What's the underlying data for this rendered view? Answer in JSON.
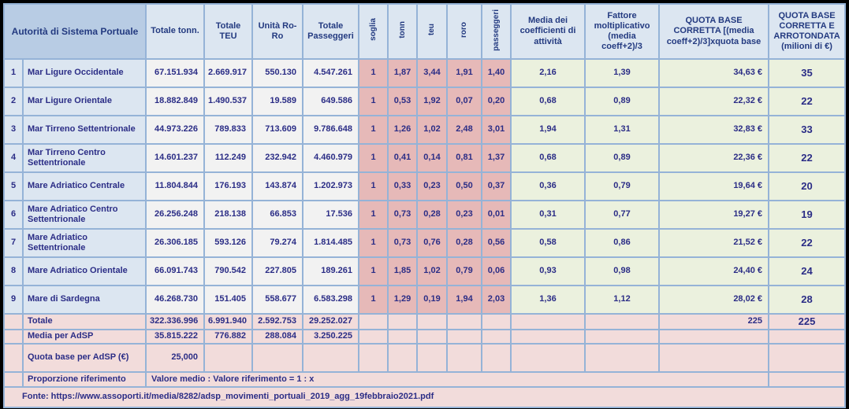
{
  "table": {
    "header": {
      "authority": "Autorità di Sistema Portuale",
      "tonn": "Totale tonn.",
      "teu": "Totale TEU",
      "roro": "Unità Ro-Ro",
      "passengers": "Totale Passeggeri",
      "rot_soglia": "soglia",
      "rot_tonn": "tonn",
      "rot_teu": "teu",
      "rot_roro": "roro",
      "rot_passeggeri": "passeggeri",
      "media": "Media dei coefficienti di attività",
      "fattore": "Fattore moltiplicativo (media coeff+2)/3",
      "quota": "QUOTA BASE CORRETTA [(media coeff+2)/3]xquota base",
      "quota_round": "QUOTA BASE CORRETTA E ARROTONDATA (milioni di €)"
    },
    "rows": [
      {
        "n": "1",
        "name": "Mar Ligure Occidentale",
        "tonn": "67.151.934",
        "teu": "2.669.917",
        "roro": "550.130",
        "pass": "4.547.261",
        "soglia": "1",
        "c_tonn": "1,87",
        "c_teu": "3,44",
        "c_roro": "1,91",
        "c_pass": "1,40",
        "media": "2,16",
        "fattore": "1,39",
        "quota": "34,63 €",
        "quota_round": "35"
      },
      {
        "n": "2",
        "name": "Mar Ligure Orientale",
        "tonn": "18.882.849",
        "teu": "1.490.537",
        "roro": "19.589",
        "pass": "649.586",
        "soglia": "1",
        "c_tonn": "0,53",
        "c_teu": "1,92",
        "c_roro": "0,07",
        "c_pass": "0,20",
        "media": "0,68",
        "fattore": "0,89",
        "quota": "22,32 €",
        "quota_round": "22"
      },
      {
        "n": "3",
        "name": "Mar Tirreno Settentrionale",
        "tonn": "44.973.226",
        "teu": "789.833",
        "roro": "713.609",
        "pass": "9.786.648",
        "soglia": "1",
        "c_tonn": "1,26",
        "c_teu": "1,02",
        "c_roro": "2,48",
        "c_pass": "3,01",
        "media": "1,94",
        "fattore": "1,31",
        "quota": "32,83 €",
        "quota_round": "33"
      },
      {
        "n": "4",
        "name": "Mar Tirreno Centro Settentrionale",
        "tonn": "14.601.237",
        "teu": "112.249",
        "roro": "232.942",
        "pass": "4.460.979",
        "soglia": "1",
        "c_tonn": "0,41",
        "c_teu": "0,14",
        "c_roro": "0,81",
        "c_pass": "1,37",
        "media": "0,68",
        "fattore": "0,89",
        "quota": "22,36 €",
        "quota_round": "22"
      },
      {
        "n": "5",
        "name": "Mare Adriatico Centrale",
        "tonn": "11.804.844",
        "teu": "176.193",
        "roro": "143.874",
        "pass": "1.202.973",
        "soglia": "1",
        "c_tonn": "0,33",
        "c_teu": "0,23",
        "c_roro": "0,50",
        "c_pass": "0,37",
        "media": "0,36",
        "fattore": "0,79",
        "quota": "19,64 €",
        "quota_round": "20"
      },
      {
        "n": "6",
        "name": "Mare Adriatico Centro Settentrionale",
        "tonn": "26.256.248",
        "teu": "218.138",
        "roro": "66.853",
        "pass": "17.536",
        "soglia": "1",
        "c_tonn": "0,73",
        "c_teu": "0,28",
        "c_roro": "0,23",
        "c_pass": "0,01",
        "media": "0,31",
        "fattore": "0,77",
        "quota": "19,27 €",
        "quota_round": "19"
      },
      {
        "n": "7",
        "name": "Mare Adriatico Settentrionale",
        "tonn": "26.306.185",
        "teu": "593.126",
        "roro": "79.274",
        "pass": "1.814.485",
        "soglia": "1",
        "c_tonn": "0,73",
        "c_teu": "0,76",
        "c_roro": "0,28",
        "c_pass": "0,56",
        "media": "0,58",
        "fattore": "0,86",
        "quota": "21,52 €",
        "quota_round": "22"
      },
      {
        "n": "8",
        "name": "Mare Adriatico Orientale",
        "tonn": "66.091.743",
        "teu": "790.542",
        "roro": "227.805",
        "pass": "189.261",
        "soglia": "1",
        "c_tonn": "1,85",
        "c_teu": "1,02",
        "c_roro": "0,79",
        "c_pass": "0,06",
        "media": "0,93",
        "fattore": "0,98",
        "quota": "24,40 €",
        "quota_round": "24"
      },
      {
        "n": "9",
        "name": "Mare di Sardegna",
        "tonn": "46.268.730",
        "teu": "151.405",
        "roro": "558.677",
        "pass": "6.583.298",
        "soglia": "1",
        "c_tonn": "1,29",
        "c_teu": "0,19",
        "c_roro": "1,94",
        "c_pass": "2,03",
        "media": "1,36",
        "fattore": "1,12",
        "quota": "28,02 €",
        "quota_round": "28"
      }
    ],
    "footer": {
      "totale": {
        "label": "Totale",
        "tonn": "322.336.996",
        "teu": "6.991.940",
        "roro": "2.592.753",
        "pass": "29.252.027",
        "quota": "225",
        "quota_round": "225"
      },
      "media": {
        "label": "Media per AdSP",
        "tonn": "35.815.222",
        "teu": "776.882",
        "roro": "288.084",
        "pass": "3.250.225"
      },
      "quota_base": {
        "label": "Quota base per AdSP (€)",
        "value": "25,000"
      },
      "proporzione": {
        "label": "Proporzione riferimento",
        "value": "Valore medio : Valore riferimento = 1 : x"
      },
      "fonte": "Fonte: https://www.assoporti.it/media/8282/adsp_movimenti_portuali_2019_agg_19febbraio2021.pdf"
    },
    "colors": {
      "text_navy": "#2b2d86",
      "header_text": "#233a80",
      "grid_border": "#95b3d7",
      "header_authority_bg": "#b8cce4",
      "header_bg": "#dce6f1",
      "name_col_bg": "#dce6f1",
      "value_col_bg": "#f2f2f2",
      "coefficient_col_bg": "#e6b9b8",
      "computed_col_bg": "#ebf1de",
      "footer_bg": "#f2dcdb",
      "outer_frame": "#000000"
    }
  }
}
